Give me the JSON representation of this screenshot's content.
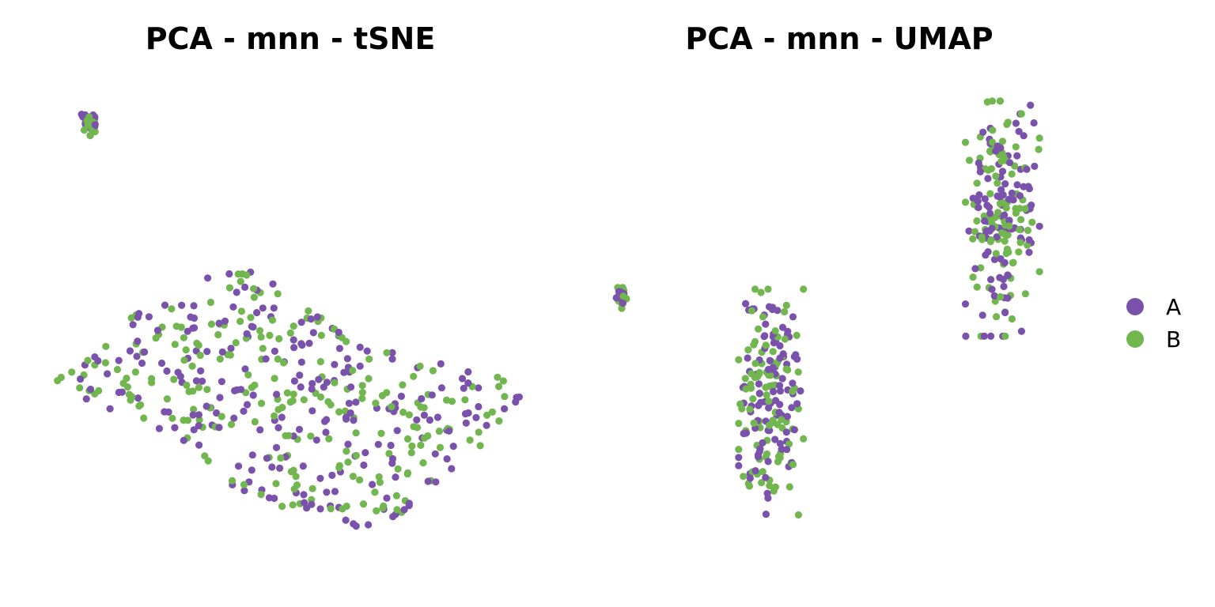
{
  "colors": {
    "A": "#7b52ab",
    "B": "#72b650"
  },
  "legend": {
    "entries": [
      {
        "label": "A",
        "color": "#7b52ab"
      },
      {
        "label": "B",
        "color": "#72b650"
      }
    ],
    "placement": "right"
  },
  "chart_data": [
    {
      "type": "scatter",
      "title": "PCA - mnn - tSNE",
      "xlabel": "",
      "ylabel": "",
      "axes_visible": false,
      "grid": false,
      "xlim": [
        0,
        100
      ],
      "ylim": [
        0,
        100
      ],
      "clusters": [
        {
          "name": "top-left",
          "center": [
            7,
            92
          ],
          "spread": [
            1.6,
            2.6
          ],
          "n": [
            20,
            20
          ],
          "shape": "blob"
        },
        {
          "name": "main",
          "polygon": [
            [
              0,
              38
            ],
            [
              10,
              45
            ],
            [
              22,
              57
            ],
            [
              37,
              62
            ],
            [
              44,
              60
            ],
            [
              52,
              54
            ],
            [
              65,
              45
            ],
            [
              97,
              38
            ],
            [
              99,
              33
            ],
            [
              88,
              21
            ],
            [
              70,
              6
            ],
            [
              56,
              7
            ],
            [
              38,
              15
            ],
            [
              24,
              26
            ],
            [
              10,
              32
            ],
            [
              2,
              35
            ]
          ],
          "n": [
            230,
            230
          ],
          "shape": "region"
        }
      ]
    },
    {
      "type": "scatter",
      "title": "PCA - mnn - UMAP",
      "xlabel": "",
      "ylabel": "",
      "axes_visible": false,
      "grid": false,
      "xlim": [
        0,
        100
      ],
      "ylim": [
        0,
        100
      ],
      "clusters": [
        {
          "name": "left",
          "center": [
            2.5,
            55
          ],
          "spread": [
            1.4,
            2.6
          ],
          "n": [
            8,
            12
          ],
          "shape": "blob"
        },
        {
          "name": "bottom",
          "center": [
            35,
            33
          ],
          "spread": [
            7,
            24
          ],
          "n": [
            100,
            100
          ],
          "shape": "ellipse"
        },
        {
          "name": "top-right",
          "center": [
            85,
            72
          ],
          "spread": [
            8,
            25
          ],
          "n": [
            105,
            105
          ],
          "shape": "ellipse"
        }
      ]
    }
  ]
}
